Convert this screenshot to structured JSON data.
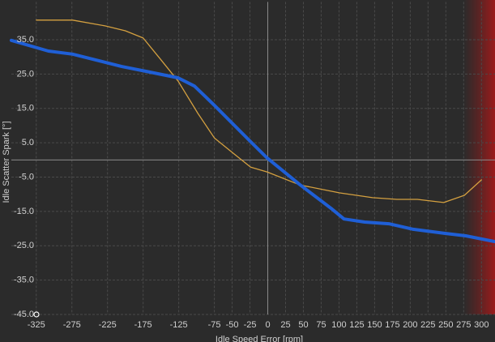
{
  "chart_data": {
    "type": "line",
    "y_label": "Idle Scatter Spark [°]",
    "x_label": "Idle Speed Error [rpm]",
    "xlim": [
      -360,
      319
    ],
    "ylim": [
      -45,
      46
    ],
    "xticks": [
      -325,
      -275,
      -225,
      -175,
      -125,
      -75,
      -50,
      -25,
      0,
      25,
      50,
      75,
      100,
      125,
      150,
      175,
      200,
      225,
      250,
      275,
      300
    ],
    "yticks": [
      {
        "value": 35,
        "label": "35.0"
      },
      {
        "value": 25,
        "label": "25.0"
      },
      {
        "value": 15,
        "label": "15.0"
      },
      {
        "value": 5,
        "label": "5.0"
      },
      {
        "value": -5,
        "label": "-5.0"
      },
      {
        "value": -15,
        "label": "-15.0"
      },
      {
        "value": -25,
        "label": "-25.0"
      },
      {
        "value": -35,
        "label": "-35.0"
      },
      {
        "value": -45,
        "label": "-45.0"
      }
    ],
    "grid": true,
    "series": [
      {
        "color": "#d4a040",
        "width": 1.3,
        "x": [
          -325,
          -274,
          -228,
          -200,
          -175,
          -149,
          -126,
          -98,
          -75,
          -47,
          -24,
          -1,
          45,
          101,
          147,
          181,
          210,
          247,
          276,
          300
        ],
        "values": [
          40.7,
          40.7,
          39,
          37.6,
          35.5,
          28.9,
          23,
          13.5,
          6.4,
          1.7,
          -2.1,
          -3.5,
          -7.3,
          -9.6,
          -11,
          -11.5,
          -11.5,
          -12.4,
          -10.3,
          -5.8
        ]
      },
      {
        "color": "#1f5fd6",
        "width": 4,
        "x": [
          -360,
          -308,
          -274,
          -205,
          -171,
          -126,
          -103,
          -75,
          -24,
          -1,
          45,
          90,
          107,
          136,
          170,
          204,
          249,
          278,
          319
        ],
        "values": [
          34.8,
          31.7,
          30.8,
          27.2,
          25.8,
          23.9,
          21.5,
          15.9,
          5.3,
          0.6,
          -7.2,
          -14.3,
          -17.2,
          -18.1,
          -18.6,
          -20.2,
          -21.4,
          -22.1,
          -23.8
        ]
      }
    ]
  }
}
